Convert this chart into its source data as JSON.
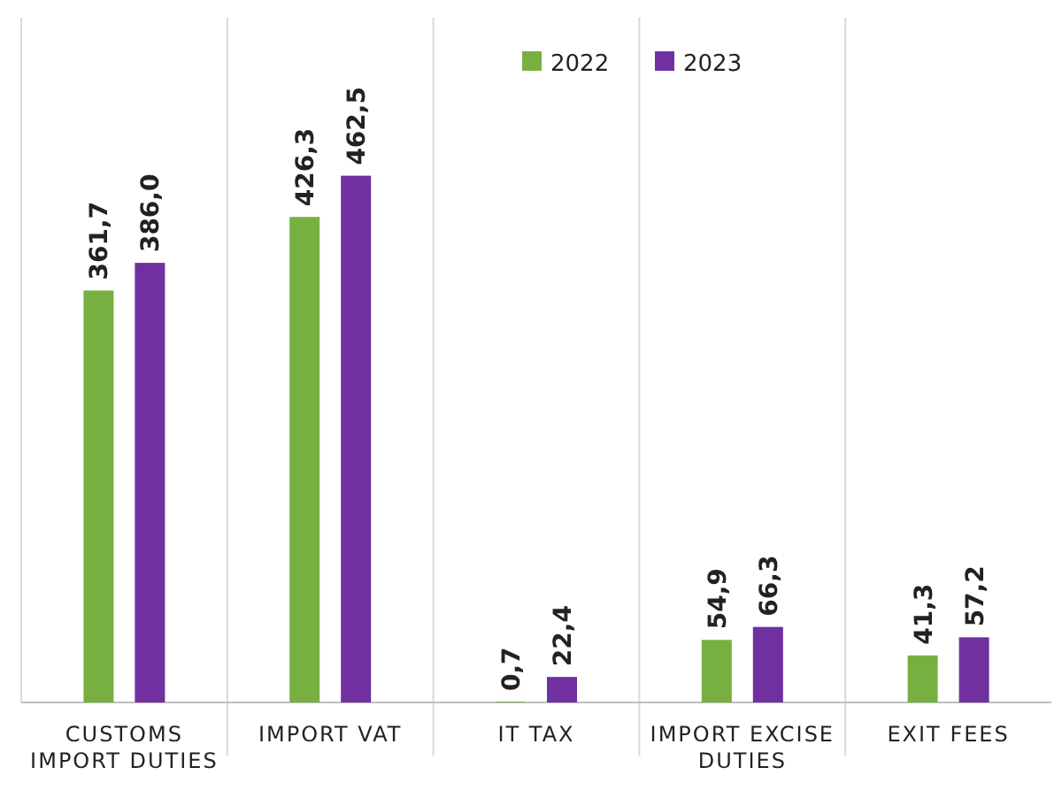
{
  "chart_data": {
    "type": "bar",
    "categories": [
      "CUSTOMS IMPORT DUTIES",
      "IMPORT VAT",
      "IT TAX",
      "IMPORT EXCISE DUTIES",
      "EXIT FEES"
    ],
    "series": [
      {
        "name": "2022",
        "color": "#77b041",
        "values": [
          361.7,
          426.3,
          0.7,
          54.9,
          41.3
        ],
        "value_labels": [
          "361,7",
          "426,3",
          "0,7",
          "54,9",
          "41,3"
        ]
      },
      {
        "name": "2023",
        "color": "#7030a0",
        "values": [
          386.0,
          462.5,
          22.4,
          66.3,
          57.2
        ],
        "value_labels": [
          "386,0",
          "462,5",
          "22,4",
          "66,3",
          "57,2"
        ]
      }
    ],
    "legend": "top"
  }
}
